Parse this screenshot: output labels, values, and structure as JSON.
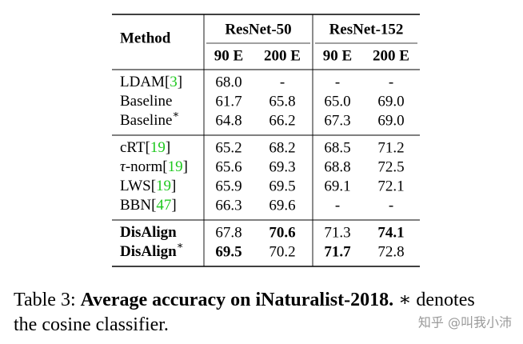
{
  "table": {
    "header": {
      "method": "Method",
      "groups": [
        "ResNet-50",
        "ResNet-152"
      ],
      "columns": [
        "90 E",
        "200 E",
        "90 E",
        "200 E"
      ]
    },
    "sections": [
      {
        "rows": [
          {
            "method": [
              {
                "text": "LDAM["
              },
              {
                "text": "3",
                "cite": true
              },
              {
                "text": "]"
              }
            ],
            "cells": [
              "68.0",
              "-",
              "-",
              "-"
            ]
          },
          {
            "method": [
              {
                "text": "Baseline"
              }
            ],
            "cells": [
              "61.7",
              "65.8",
              "65.0",
              "69.0"
            ]
          },
          {
            "method": [
              {
                "text": "Baseline"
              },
              {
                "text": "∗",
                "sup": true
              }
            ],
            "cells": [
              "64.8",
              "66.2",
              "67.3",
              "69.0"
            ]
          }
        ]
      },
      {
        "rows": [
          {
            "method": [
              {
                "text": "cRT["
              },
              {
                "text": "19",
                "cite": true
              },
              {
                "text": "]"
              }
            ],
            "cells": [
              "65.2",
              "68.2",
              "68.5",
              "71.2"
            ]
          },
          {
            "method": [
              {
                "text": "τ",
                "italic": true
              },
              {
                "text": "-norm["
              },
              {
                "text": "19",
                "cite": true
              },
              {
                "text": "]"
              }
            ],
            "cells": [
              "65.6",
              "69.3",
              "68.8",
              "72.5"
            ]
          },
          {
            "method": [
              {
                "text": "LWS["
              },
              {
                "text": "19",
                "cite": true
              },
              {
                "text": "]"
              }
            ],
            "cells": [
              "65.9",
              "69.5",
              "69.1",
              "72.1"
            ]
          },
          {
            "method": [
              {
                "text": "BBN["
              },
              {
                "text": "47",
                "cite": true
              },
              {
                "text": "]"
              }
            ],
            "cells": [
              "66.3",
              "69.6",
              "-",
              "-"
            ]
          }
        ]
      },
      {
        "rows": [
          {
            "method": [
              {
                "text": "DisAlign",
                "bold": true
              }
            ],
            "cells": [
              "67.8",
              "70.6",
              "71.3",
              "74.1"
            ],
            "bold": [
              1,
              3
            ]
          },
          {
            "method": [
              {
                "text": "DisAlign",
                "bold": true
              },
              {
                "text": "∗",
                "sup": true
              }
            ],
            "cells": [
              "69.5",
              "70.2",
              "71.7",
              "72.8"
            ],
            "bold": [
              0,
              2
            ]
          }
        ]
      }
    ]
  },
  "caption": [
    [
      {
        "text": "Table 3: "
      },
      {
        "text": "Average accuracy on iNaturalist-2018.",
        "bold": true
      },
      {
        "text": " ∗ denotes"
      }
    ],
    [
      {
        "text": "the cosine classifier."
      }
    ]
  ],
  "watermark": "知乎 @叫我小沛"
}
